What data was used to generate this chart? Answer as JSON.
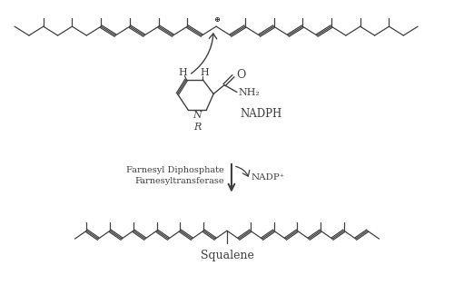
{
  "bg_color": "#ffffff",
  "line_color": "#404040",
  "text_color": "#404040",
  "nadph_label": "NADPH",
  "nadp_label": "NADP⁺",
  "enzyme_line1": "Farnesyl Diphosphate",
  "enzyme_line2": "Farnesyltransferase",
  "squalene_label": "Squalene",
  "nh2_label": "NH₂",
  "h_label": "H",
  "n_label": "N",
  "r_label": "R",
  "o_label": "O",
  "plus_label": "⊕"
}
